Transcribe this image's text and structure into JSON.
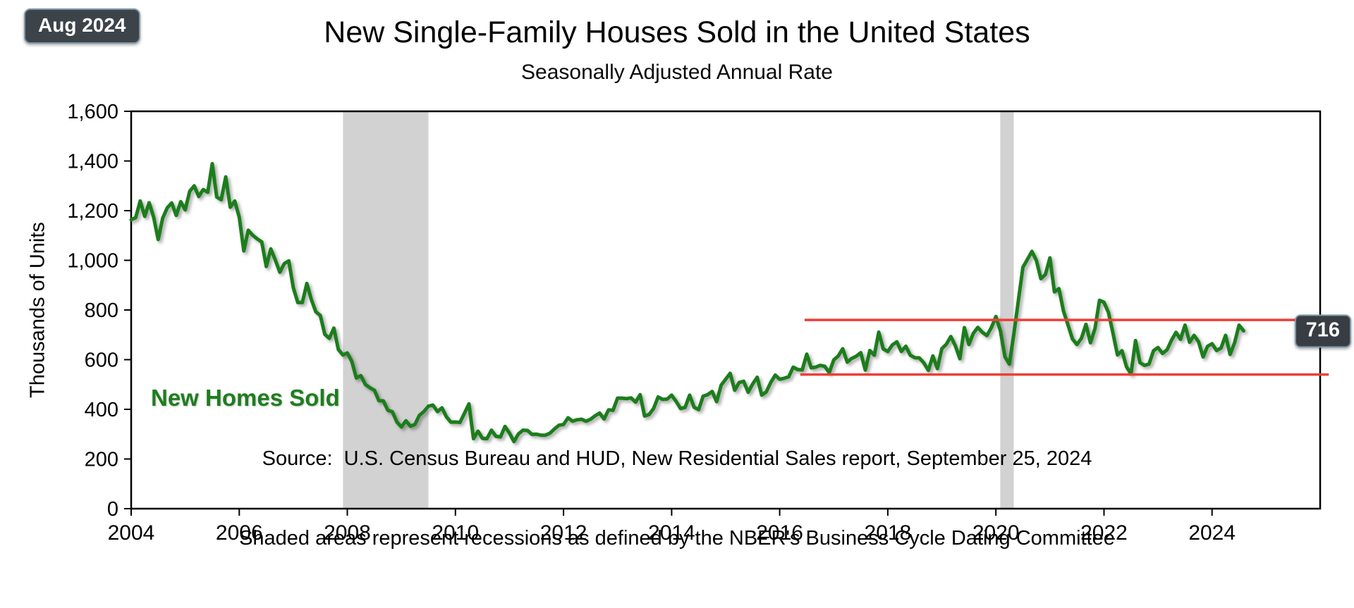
{
  "badge": {
    "label": "Aug 2024"
  },
  "title": "New Single-Family Houses Sold in the United States",
  "subtitle": "Seasonally Adjusted Annual Rate",
  "series_label": "New Homes Sold",
  "value_badge": {
    "label": "716"
  },
  "source_line1": "Source:  U.S. Census Bureau and HUD, New Residential Sales report, September 25, 2024",
  "source_line2": "Shaded areas represent recessions as defined by the NBER's Business Cycle Dating Committee",
  "chart_data": {
    "type": "line",
    "title": "New Single-Family Houses Sold in the United States",
    "subtitle": "Seasonally Adjusted Annual Rate",
    "xlabel": "",
    "ylabel": "Thousands of Units",
    "ylim": [
      0,
      1600
    ],
    "xlim": [
      2004,
      2026
    ],
    "grid": false,
    "legend": "none",
    "yticks": [
      0,
      200,
      400,
      600,
      800,
      1000,
      1200,
      1400,
      1600
    ],
    "ytick_labels": [
      "0",
      "200",
      "400",
      "600",
      "800",
      "1,000",
      "1,200",
      "1,400",
      "1,600"
    ],
    "xticks": [
      2004,
      2006,
      2008,
      2010,
      2012,
      2014,
      2016,
      2018,
      2020,
      2022,
      2024
    ],
    "line_color": "#1f7d1f",
    "band_color": "#d2d2d2",
    "reference_line_color": "#ee3e36",
    "recession_bands": [
      {
        "start": 2007.92,
        "end": 2009.5
      },
      {
        "start": 2020.08,
        "end": 2020.33
      }
    ],
    "reference_lines": [
      {
        "value": 760,
        "x_start": 2016.46,
        "x_end": 2025.66
      },
      {
        "value": 540,
        "x_start": 2016.38,
        "x_end": 2026.16
      }
    ],
    "latest": {
      "label": "Aug 2024",
      "value": 716
    },
    "series": [
      {
        "name": "New Homes Sold",
        "frequency": "monthly",
        "start_year": 2004,
        "start_month": 1,
        "end": "2024-08",
        "values": [
          1163,
          1172,
          1239,
          1177,
          1232,
          1174,
          1084,
          1170,
          1211,
          1231,
          1181,
          1236,
          1203,
          1278,
          1300,
          1257,
          1285,
          1274,
          1389,
          1255,
          1244,
          1336,
          1214,
          1239,
          1173,
          1038,
          1121,
          1101,
          1086,
          1074,
          975,
          1046,
          1001,
          952,
          987,
          998,
          890,
          830,
          830,
          907,
          842,
          793,
          778,
          702,
          686,
          727,
          641,
          619,
          627,
          593,
          526,
          536,
          500,
          487,
          477,
          435,
          434,
          396,
          390,
          349,
          329,
          354,
          332,
          339,
          376,
          391,
          413,
          417,
          391,
          406,
          370,
          348,
          349,
          347,
          384,
          422,
          282,
          312,
          283,
          282,
          316,
          291,
          289,
          331,
          304,
          270,
          301,
          316,
          315,
          299,
          300,
          296,
          296,
          304,
          321,
          336,
          339,
          366,
          352,
          358,
          360,
          352,
          360,
          374,
          385,
          361,
          398,
          396,
          445,
          445,
          443,
          446,
          429,
          459,
          373,
          379,
          403,
          450,
          440,
          441,
          457,
          432,
          403,
          408,
          457,
          408,
          399,
          453,
          459,
          472,
          431,
          497,
          521,
          545,
          477,
          508,
          513,
          469,
          502,
          529,
          457,
          470,
          508,
          538,
          521,
          525,
          531,
          570,
          560,
          559,
          622,
          567,
          570,
          577,
          573,
          548,
          599,
          615,
          644,
          590,
          605,
          614,
          628,
          558,
          637,
          618,
          711,
          643,
          633,
          659,
          672,
          633,
          654,
          618,
          608,
          607,
          587,
          557,
          615,
          564,
          644,
          662,
          693,
          656,
          604,
          729,
          661,
          706,
          730,
          710,
          697,
          729,
          774,
          716,
          612,
          582,
          704,
          839,
          972,
          1004,
          1036,
          999,
          926,
          943,
          1010,
          873,
          886,
          796,
          740,
          683,
          661,
          686,
          742,
          668,
          725,
          839,
          831,
          790,
          707,
          619,
          636,
          571,
          543,
          677,
          588,
          577,
          582,
          636,
          649,
          625,
          640,
          679,
          710,
          682,
          739,
          670,
          698,
          672,
          611,
          654,
          664,
          637,
          647,
          698,
          621,
          668,
          739,
          716
        ]
      }
    ]
  }
}
